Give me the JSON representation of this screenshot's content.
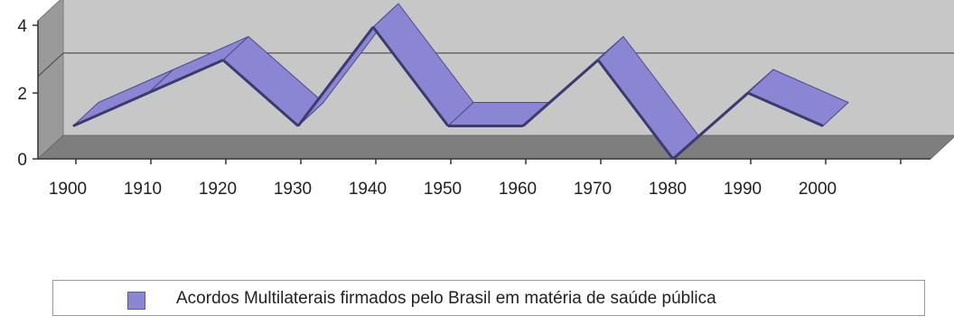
{
  "chart_data": {
    "type": "line",
    "style": "3d-ribbon",
    "categories": [
      "1900",
      "1910",
      "1920",
      "1930",
      "1940",
      "1950",
      "1960",
      "1970",
      "1980",
      "1990",
      "2000"
    ],
    "series": [
      {
        "name": "Acordos Multilaterais firmados pelo Brasil em matéria de saúde pública",
        "values": [
          1,
          2,
          3,
          1,
          4,
          1,
          1,
          3,
          0,
          2,
          1
        ],
        "color": "#8a86d4"
      }
    ],
    "y_ticks": [
      "0",
      "2",
      "4"
    ],
    "ylim": [
      0,
      4
    ],
    "grid": true,
    "legend": "bottom",
    "colors": {
      "wall": "#c7c7c7",
      "floor": "#7e7e7e",
      "ribbon": "#8a86d4",
      "ribbon_dark": "#3c3a6e"
    }
  }
}
